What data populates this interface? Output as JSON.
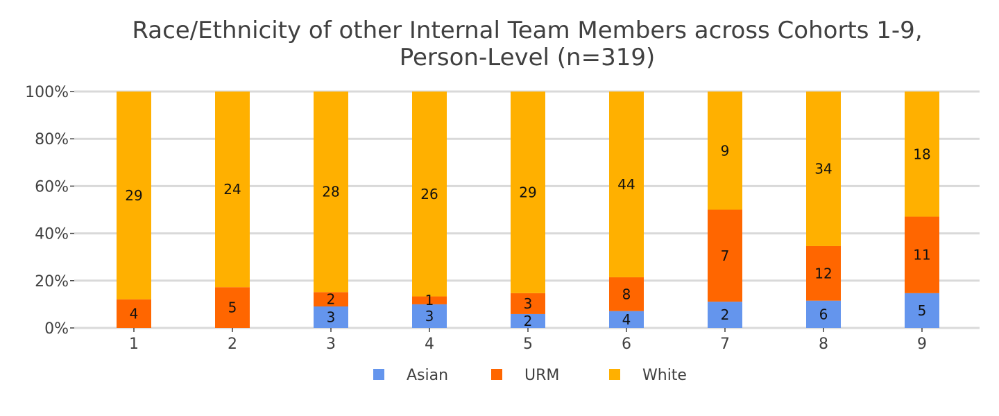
{
  "chart_data": {
    "type": "bar",
    "stacked": true,
    "normalized": true,
    "title_lines": [
      "Race/Ethnicity of other Internal Team Members across Cohorts 1-9,",
      "Person-Level (n=319)"
    ],
    "categories": [
      "1",
      "2",
      "3",
      "4",
      "5",
      "6",
      "7",
      "8",
      "9"
    ],
    "yticks": [
      "0%",
      "20%",
      "40%",
      "60%",
      "80%",
      "100%"
    ],
    "ylim": [
      0,
      100
    ],
    "grid": true,
    "legend_position": "bottom-center",
    "series": [
      {
        "name": "Asian",
        "color": "#6495ED",
        "values": [
          0,
          0,
          3,
          3,
          2,
          4,
          2,
          6,
          5
        ]
      },
      {
        "name": "URM",
        "color": "#FF6600",
        "values": [
          4,
          5,
          2,
          1,
          3,
          8,
          7,
          12,
          11
        ]
      },
      {
        "name": "White",
        "color": "#FFB000",
        "values": [
          29,
          24,
          28,
          26,
          29,
          44,
          9,
          34,
          18
        ]
      }
    ]
  }
}
